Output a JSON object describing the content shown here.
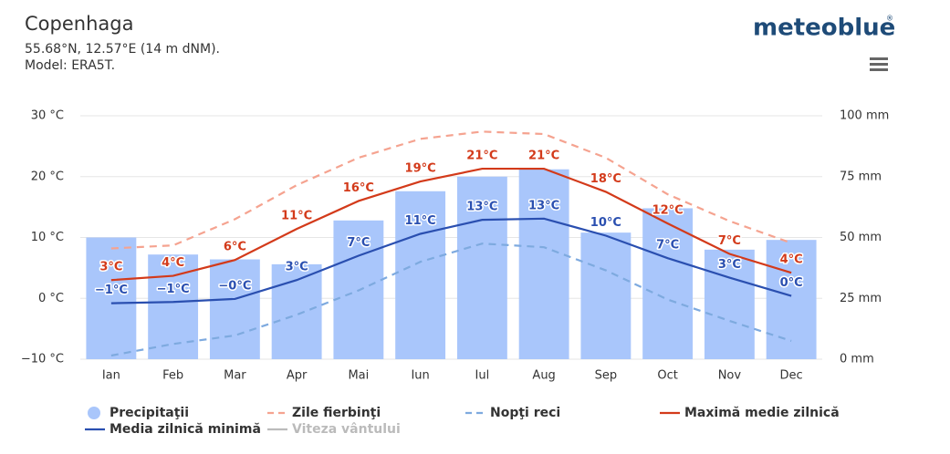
{
  "chart_data": {
    "type": "combo",
    "title": "Copenhaga",
    "subtitle": [
      "55.68°N, 12.57°E (14 m dNM).",
      "Model: ERA5T."
    ],
    "logo": "meteoblue",
    "logo_mark": "®",
    "categories": [
      "Ian",
      "Feb",
      "Mar",
      "Apr",
      "Mai",
      "Iun",
      "Iul",
      "Aug",
      "Sep",
      "Oct",
      "Nov",
      "Dec"
    ],
    "ylim": [
      -10,
      30
    ],
    "yticks": [
      {
        "value": -10,
        "label": "−10 °C"
      },
      {
        "value": 0,
        "label": "0 °C"
      },
      {
        "value": 10,
        "label": "10 °C"
      },
      {
        "value": 20,
        "label": "20 °C"
      },
      {
        "value": 30,
        "label": "30 °C"
      }
    ],
    "y2lim": [
      0,
      100
    ],
    "y2ticks": [
      {
        "value": 0,
        "label": "0 mm"
      },
      {
        "value": 25,
        "label": "25 mm"
      },
      {
        "value": 50,
        "label": "50 mm"
      },
      {
        "value": 75,
        "label": "75 mm"
      },
      {
        "value": 100,
        "label": "100 mm"
      }
    ],
    "grid": true,
    "series": [
      {
        "name": "Precipitaţii",
        "type": "bar",
        "axis": "y2",
        "color": "#a9c6fb",
        "values": [
          50,
          43,
          41,
          39,
          57,
          69,
          75,
          78,
          52,
          62,
          45,
          49
        ]
      },
      {
        "name": "Zile fierbinţi",
        "type": "line",
        "dashed": true,
        "color": "#f5a390",
        "values": [
          8.2,
          8.7,
          13,
          18.6,
          23.1,
          26.2,
          27.4,
          27,
          23.1,
          17.1,
          12.7,
          9.1
        ]
      },
      {
        "name": "Nopţi reci",
        "type": "line",
        "dashed": true,
        "color": "#7eaadf",
        "values": [
          -9.4,
          -7.5,
          -6.1,
          -2.7,
          1.3,
          6.0,
          9.0,
          8.4,
          4.6,
          -0.2,
          -3.7,
          -7.0
        ]
      },
      {
        "name": "Maximă medie zilnică",
        "type": "line",
        "color": "#d33a1a",
        "values": [
          3.0,
          3.7,
          6.3,
          11.4,
          16,
          19.2,
          21.3,
          21.3,
          17.5,
          12.3,
          7.3,
          4.2
        ],
        "value_labels": [
          "3°C",
          "4°C",
          "6°C",
          "11°C",
          "16°C",
          "19°C",
          "21°C",
          "21°C",
          "18°C",
          "12°C",
          "7°C",
          "4°C"
        ]
      },
      {
        "name": "Media zilnică minimă",
        "type": "line",
        "color": "#2a4fb0",
        "values": [
          -0.8,
          -0.6,
          -0.1,
          3.0,
          7.0,
          10.6,
          12.9,
          13.1,
          10.3,
          6.6,
          3.4,
          0.4
        ],
        "value_labels": [
          "−1°C",
          "−1°C",
          "−0°C",
          "3°C",
          "7°C",
          "11°C",
          "13°C",
          "13°C",
          "10°C",
          "7°C",
          "3°C",
          "0°C"
        ]
      },
      {
        "name": "Viteza vântului",
        "type": "line",
        "visible": false,
        "color": "#aaaaaa",
        "values": [
          null,
          null,
          null,
          null,
          null,
          null,
          null,
          null,
          null,
          null,
          null,
          null
        ]
      }
    ]
  }
}
